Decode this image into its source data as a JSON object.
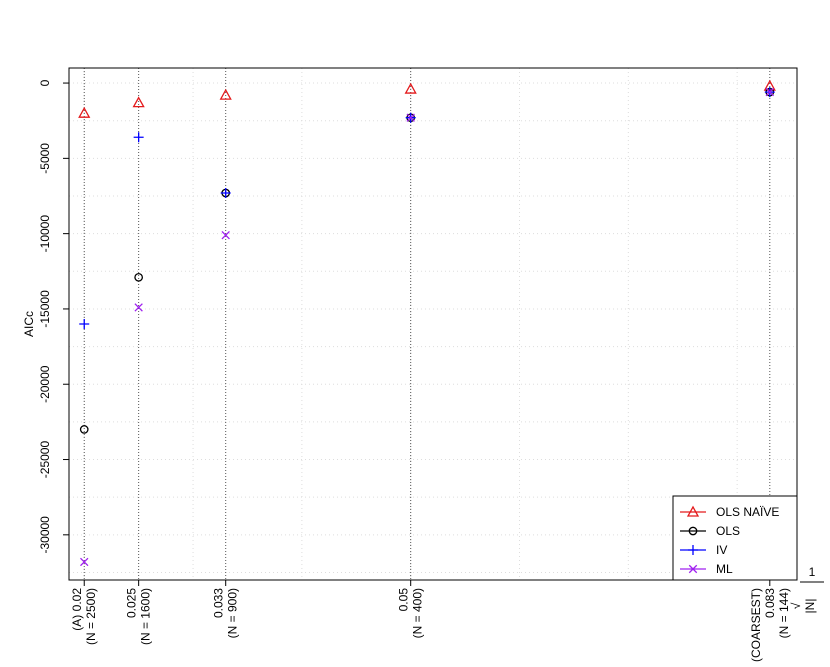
{
  "chart_data": {
    "type": "scatter",
    "title": "",
    "xlabel": "1/√|N|",
    "xlabel_parts": {
      "numerator": "1",
      "denominator": "|N|",
      "radical": "√"
    },
    "ylabel": "AICc",
    "x": [
      0.02,
      0.025,
      0.033,
      0.05,
      0.083
    ],
    "x_tick_labels": [
      [
        "(A) 0.02",
        "(N = 2500)"
      ],
      [
        "0.025",
        "(N = 1600)"
      ],
      [
        "0.033",
        "(N = 900)"
      ],
      [
        "0.05",
        "(N = 400)"
      ],
      [
        "(COARSEST)",
        "0.083",
        "(N = 144)"
      ]
    ],
    "xlim": [
      0.0186,
      0.0855
    ],
    "ylim": [
      -33000,
      1000
    ],
    "y_ticks": [
      0,
      -5000,
      -10000,
      -15000,
      -20000,
      -25000,
      -30000
    ],
    "grid": true,
    "legend_position": "bottom-right",
    "series": [
      {
        "name": "OLS NAÏVE",
        "marker": "triangle",
        "color": "#e41a1c",
        "values": [
          -2000,
          -1300,
          -800,
          -400,
          -200
        ]
      },
      {
        "name": "OLS",
        "marker": "circle",
        "color": "#000000",
        "values": [
          -23000,
          -12900,
          -7300,
          -2300,
          -600
        ]
      },
      {
        "name": "IV",
        "marker": "plus",
        "color": "#0000ff",
        "values": [
          -16000,
          -3600,
          -7300,
          -2300,
          -600
        ]
      },
      {
        "name": "ML",
        "marker": "cross",
        "color": "#a020f0",
        "values": [
          -31800,
          -14900,
          -10100,
          -2300,
          -600
        ]
      }
    ]
  }
}
